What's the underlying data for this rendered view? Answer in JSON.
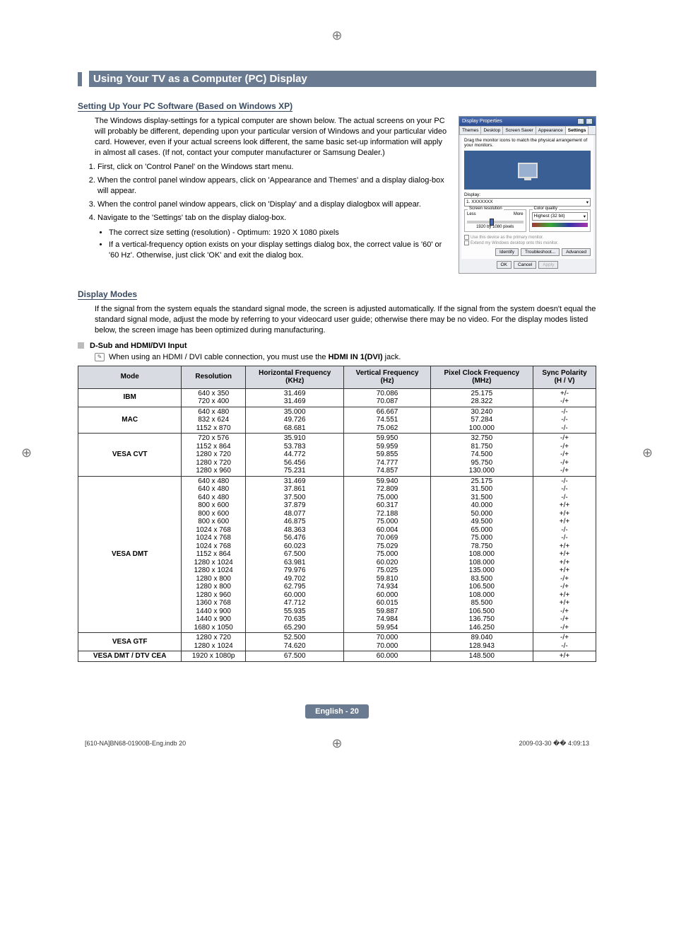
{
  "page": {
    "main_title": "Using Your TV as a Computer (PC) Display",
    "footer_center": "English - 20",
    "footer_left": "[610-NA]BN68-01900B-Eng.indb   20",
    "footer_right": "2009-03-30   �� 4:09:13"
  },
  "setup": {
    "heading": "Setting Up Your PC Software (Based on Windows XP)",
    "intro": "The Windows display-settings for a typical computer are shown below. The actual screens on your PC will probably be different, depending upon your particular version of Windows and your particular video card. However, even if your actual screens look different, the same basic set-up information will apply in almost all cases. (If not, contact your computer manufacturer or Samsung Dealer.)",
    "steps": [
      "First, click on 'Control Panel' on the Windows start menu.",
      "When the control panel window appears, click on 'Appearance and Themes' and a display dialog-box will appear.",
      "When the control panel window appears, click on 'Display' and a display dialogbox will appear.",
      "Navigate to the 'Settings' tab on the display dialog-box."
    ],
    "bullets": [
      "The correct size setting (resolution) - Optimum: 1920 X 1080 pixels",
      "If a vertical-frequency option exists on your display settings dialog box, the correct value is '60' or '60 Hz'. Otherwise, just click 'OK' and exit the dialog box."
    ]
  },
  "display_modes": {
    "heading": "Display Modes",
    "intro": "If the signal from the system equals the standard signal mode, the screen is adjusted automatically. If the signal from the system doesn't equal the standard signal mode, adjust the mode by referring to your videocard user guide; otherwise there may be no video. For the display modes listed below, the screen image has been optimized during manufacturing.",
    "dsub_label": "D-Sub and HDMI/DVI Input",
    "note_prefix": "When using an HDMI / DVI cable connection, you must use the ",
    "note_bold": "HDMI IN 1(DVI)",
    "note_suffix": " jack."
  },
  "table": {
    "headers": [
      "Mode",
      "Resolution",
      "Horizontal Frequency\n(KHz)",
      "Vertical Frequency\n(Hz)",
      "Pixel Clock Frequency\n(MHz)",
      "Sync Polarity\n(H / V)"
    ],
    "rows": [
      {
        "mode": "IBM",
        "res": "640 x 350\n720 x 400",
        "hf": "31.469\n31.469",
        "vf": "70.086\n70.087",
        "pc": "25.175\n28.322",
        "sp": "+/-\n-/+"
      },
      {
        "mode": "MAC",
        "res": "640 x 480\n832 x 624\n1152 x 870",
        "hf": "35.000\n49.726\n68.681",
        "vf": "66.667\n74.551\n75.062",
        "pc": "30.240\n57.284\n100.000",
        "sp": "-/-\n-/-\n-/-"
      },
      {
        "mode": "VESA CVT",
        "res": "720 x 576\n1152 x 864\n1280 x 720\n1280 x 720\n1280 x 960",
        "hf": "35.910\n53.783\n44.772\n56.456\n75.231",
        "vf": "59.950\n59.959\n59.855\n74.777\n74.857",
        "pc": "32.750\n81.750\n74.500\n95.750\n130.000",
        "sp": "-/+\n-/+\n-/+\n-/+\n-/+"
      },
      {
        "mode": "VESA DMT",
        "res": "640 x 480\n640 x 480\n640 x 480\n800 x 600\n800 x 600\n800 x 600\n1024 x 768\n1024 x 768\n1024 x 768\n1152 x 864\n1280 x 1024\n1280 x 1024\n1280 x 800\n1280 x 800\n1280 x 960\n1360 x 768\n1440 x 900\n1440 x 900\n1680 x 1050",
        "hf": "31.469\n37.861\n37.500\n37.879\n48.077\n46.875\n48.363\n56.476\n60.023\n67.500\n63.981\n79.976\n49.702\n62.795\n60.000\n47.712\n55.935\n70.635\n65.290",
        "vf": "59.940\n72.809\n75.000\n60.317\n72.188\n75.000\n60.004\n70.069\n75.029\n75.000\n60.020\n75.025\n59.810\n74.934\n60.000\n60.015\n59.887\n74.984\n59.954",
        "pc": "25.175\n31.500\n31.500\n40.000\n50.000\n49.500\n65.000\n75.000\n78.750\n108.000\n108.000\n135.000\n83.500\n106.500\n108.000\n85.500\n106.500\n136.750\n146.250",
        "sp": "-/-\n-/-\n-/-\n+/+\n+/+\n+/+\n-/-\n-/-\n+/+\n+/+\n+/+\n+/+\n-/+\n-/+\n+/+\n+/+\n-/+\n-/+\n-/+"
      },
      {
        "mode": "VESA GTF",
        "res": "1280 x 720\n1280 x 1024",
        "hf": "52.500\n74.620",
        "vf": "70.000\n70.000",
        "pc": "89.040\n128.943",
        "sp": "-/+\n-/-"
      },
      {
        "mode": "VESA DMT / DTV CEA",
        "res": "1920 x 1080p",
        "hf": "67.500",
        "vf": "60.000",
        "pc": "148.500",
        "sp": "+/+"
      }
    ]
  },
  "screenshot": {
    "title": "Display Properties",
    "tabs": [
      "Themes",
      "Desktop",
      "Screen Saver",
      "Appearance",
      "Settings"
    ],
    "active_tab": 4,
    "drag_text": "Drag the monitor icons to match the physical arrangement of your monitors.",
    "display_label": "Display:",
    "display_value": "1. XXXXXXX",
    "group1_label": "Screen resolution",
    "slider_less": "Less",
    "slider_more": "More",
    "slider_value": "1920 by 1080 pixels",
    "group2_label": "Color quality",
    "color_value": "Highest (32 bit)",
    "check1": "Use this device as the primary monitor.",
    "check2": "Extend my Windows desktop onto this monitor.",
    "btn_identify": "Identify",
    "btn_troubleshoot": "Troubleshoot...",
    "btn_advanced": "Advanced",
    "btn_ok": "OK",
    "btn_cancel": "Cancel",
    "btn_apply": "Apply"
  }
}
